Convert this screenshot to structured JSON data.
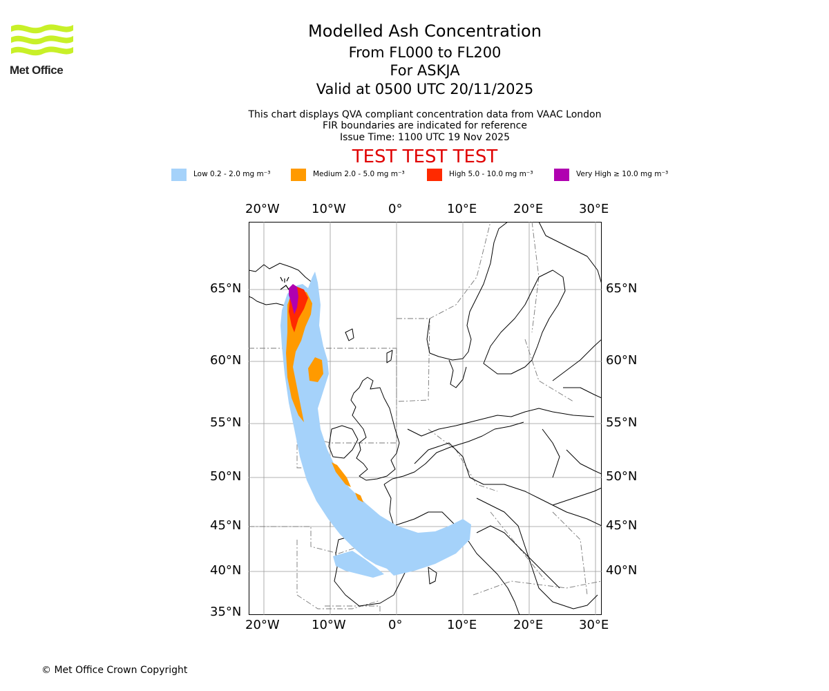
{
  "header": {
    "title": "Modelled Ash Concentration",
    "levels": "From FL000 to FL200",
    "volcano": "For ASKJA",
    "valid": "Valid at 0500 UTC 20/11/2025",
    "note1": "This chart displays QVA compliant concentration data from VAAC London",
    "note2": "FIR boundaries are indicated for reference",
    "note3": "Issue Time: 1100 UTC 19 Nov 2025",
    "test_banner": "TEST TEST TEST"
  },
  "logo": {
    "text": "Met Office"
  },
  "legend": [
    {
      "label": "Low 0.2 - 2.0 mg m⁻³",
      "color": "#a5d2fa"
    },
    {
      "label": "Medium 2.0 - 5.0 mg m⁻³",
      "color": "#ff9a00"
    },
    {
      "label": "High 5.0 - 10.0 mg m⁻³",
      "color": "#ff2a00"
    },
    {
      "label": "Very High  ≥  10.0 mg m⁻³",
      "color": "#b000b0"
    }
  ],
  "map": {
    "lon_ticks": [
      "20°W",
      "10°W",
      "0°",
      "10°E",
      "20°E",
      "30°E"
    ],
    "lat_ticks": [
      "65°N",
      "60°N",
      "55°N",
      "50°N",
      "45°N",
      "40°N",
      "35°N"
    ],
    "volcano_name": "ASKJA"
  },
  "footer": {
    "copyright": "© Met Office Crown Copyright"
  }
}
